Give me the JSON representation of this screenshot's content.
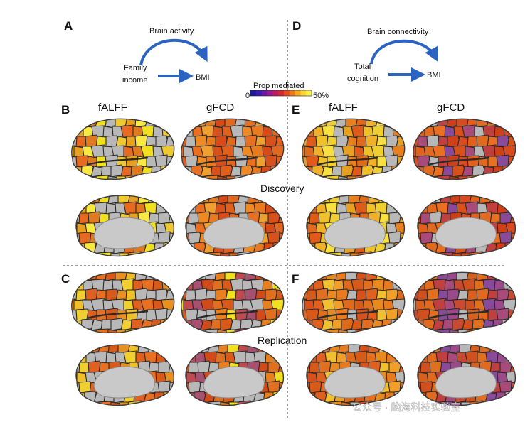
{
  "panels": {
    "A": {
      "letter": "A",
      "arrow_label": "Brain activity",
      "source_line1": "Family",
      "source_line2": "income",
      "target": "BMI"
    },
    "D": {
      "letter": "D",
      "arrow_label": "Brain connectivity",
      "source_line1": "Total",
      "source_line2": "cognition",
      "target": "BMI"
    },
    "B": {
      "letter": "B"
    },
    "C": {
      "letter": "C"
    },
    "E": {
      "letter": "E"
    },
    "F": {
      "letter": "F"
    }
  },
  "colorbar": {
    "title": "Prop mediated",
    "min_label": "0",
    "max_label": "50%",
    "colors": [
      "#1a1aa8",
      "#3a1ab0",
      "#6a18a8",
      "#9a1890",
      "#c01a60",
      "#d82a2a",
      "#e84a1a",
      "#f07a18",
      "#f8a81a",
      "#fcd42a",
      "#fff04a"
    ]
  },
  "columns": {
    "fALFF": "fALFF",
    "gFCD": "gFCD"
  },
  "sections": {
    "discovery": "Discovery",
    "replication": "Replication"
  },
  "watermark": "公众号 · 脑海科技实验室",
  "brains": {
    "B_falff": {
      "tone": "yellow_gray",
      "colors": [
        "#b8b8b8",
        "#f0e020",
        "#e8a020",
        "#b8b8b8",
        "#e07a20",
        "#f0c830",
        "#b8b8b8",
        "#e86a20",
        "#b8b8b8",
        "#f8e840"
      ]
    },
    "B_gfcd": {
      "tone": "orange",
      "colors": [
        "#e0601c",
        "#e87a20",
        "#b8b8b8",
        "#d8501a",
        "#ee8a24",
        "#e06820",
        "#f0a030",
        "#b8b8b8",
        "#d84a18",
        "#e87020"
      ]
    },
    "E_falff": {
      "tone": "orange_yellow",
      "colors": [
        "#e8a020",
        "#f0d030",
        "#e06a1c",
        "#b8b8b8",
        "#f0c028",
        "#e8801e",
        "#f8e040",
        "#e05a1a",
        "#b8b8b8",
        "#f0b028"
      ]
    },
    "E_gfcd": {
      "tone": "red_purple",
      "colors": [
        "#d8501a",
        "#c04040",
        "#e0601c",
        "#8a4a9a",
        "#b8b8b8",
        "#d84a20",
        "#e87020",
        "#a84a7a",
        "#d04018",
        "#e06a20"
      ]
    },
    "C_falff": {
      "tone": "orange_gray",
      "colors": [
        "#b8b8b8",
        "#e87020",
        "#f0c028",
        "#b8b8b8",
        "#e06020",
        "#e89020",
        "#b8b8b8",
        "#f0d030",
        "#d85a1a",
        "#b8b8b8"
      ]
    },
    "C_gfcd": {
      "tone": "mixed",
      "colors": [
        "#d85a1a",
        "#b8b8b8",
        "#c04a50",
        "#e07020",
        "#b8b8b8",
        "#f0e020",
        "#d04a1a",
        "#b8b8b8",
        "#e88020",
        "#a85070"
      ]
    },
    "F_falff": {
      "tone": "orange",
      "colors": [
        "#e06a1c",
        "#e88a20",
        "#d8501a",
        "#f0a028",
        "#e07020",
        "#b8b8b8",
        "#f0c030",
        "#d85a18",
        "#e87a20",
        "#e06020"
      ]
    },
    "F_gfcd": {
      "tone": "red_purple",
      "colors": [
        "#c84a30",
        "#8a4a9a",
        "#d8601c",
        "#a84a7a",
        "#e07020",
        "#b8b8b8",
        "#c04040",
        "#d05020",
        "#9a4a8a",
        "#e06a20"
      ]
    }
  }
}
